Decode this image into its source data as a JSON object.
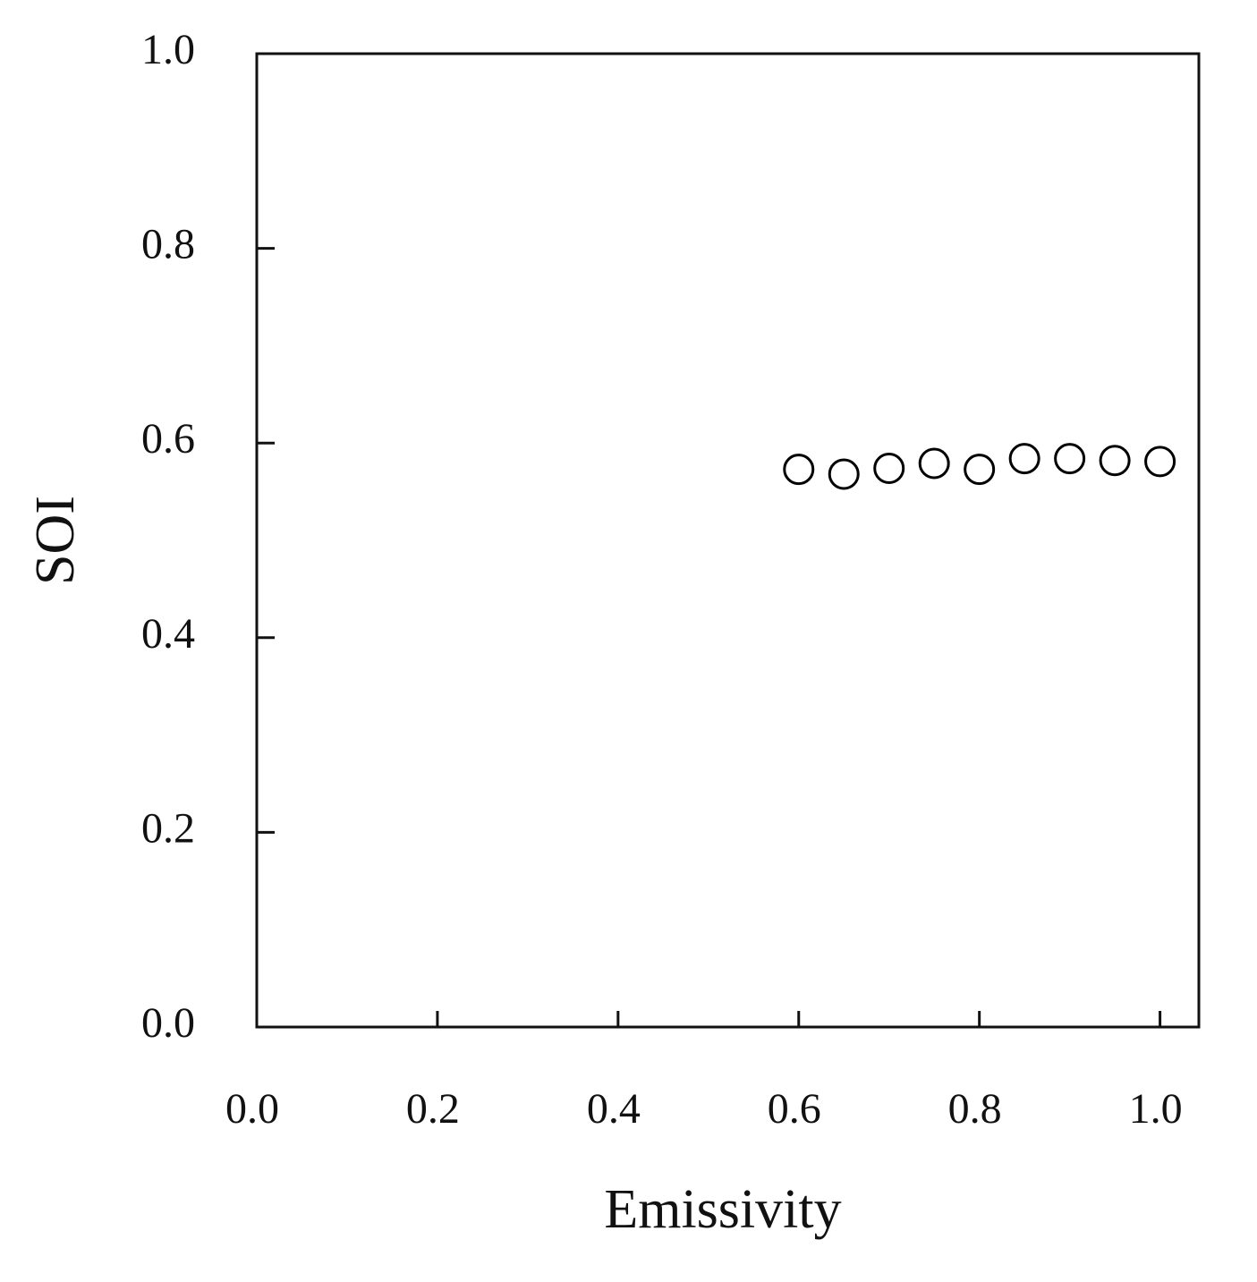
{
  "chart_data": {
    "type": "scatter",
    "x_label": "Emissivity",
    "y_label": "SOI",
    "x": [
      0.6,
      0.65,
      0.7,
      0.75,
      0.8,
      0.85,
      0.9,
      0.95,
      1.0
    ],
    "series": [
      {
        "name": "SOI",
        "color": "#000000",
        "values": [
          0.573,
          0.568,
          0.574,
          0.579,
          0.573,
          0.584,
          0.584,
          0.582,
          0.581
        ]
      }
    ],
    "xlim": [
      0,
      1.043
    ],
    "ylim": [
      0,
      1.0
    ],
    "xticks": [
      {
        "value": 0,
        "label": "0.0"
      },
      0.2,
      0.4,
      0.6,
      0.8,
      {
        "value": 1,
        "label": "1.0"
      }
    ],
    "yticks": [
      {
        "value": 0,
        "label": "0.0"
      },
      0.2,
      0.4,
      0.6,
      0.8,
      {
        "value": 1,
        "label": "1.0"
      }
    ],
    "grid": false
  }
}
